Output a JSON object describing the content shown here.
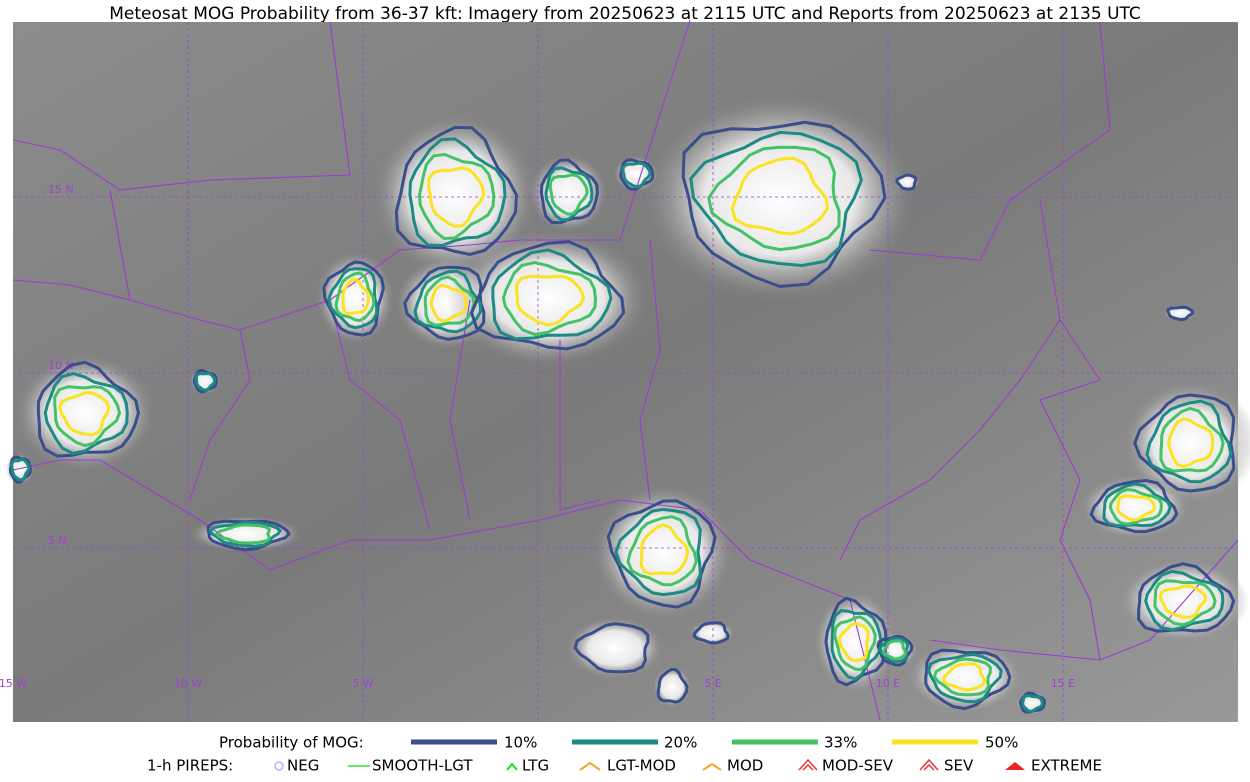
{
  "title": "Meteosat MOG Probability from 36-37 kft: Imagery from 20250623 at 2115 UTC and Reports from 20250623 at 2135 UTC",
  "latitude_labels": [
    "15 N",
    "10 N",
    "5 N"
  ],
  "longitude_labels": [
    "15 W",
    "10 W",
    "5 W",
    "5 E",
    "10 E",
    "15 E"
  ],
  "legend": {
    "mog_label": "Probability of MOG:",
    "mog_items": [
      "10%",
      "20%",
      "33%",
      "50%"
    ],
    "pirep_label": "1-h PIREPS:",
    "pirep_items": [
      "NEG",
      "SMOOTH-LGT",
      "LTG",
      "LGT-MOD",
      "MOD",
      "MOD-SEV",
      "SEV",
      "EXTREME"
    ]
  }
}
